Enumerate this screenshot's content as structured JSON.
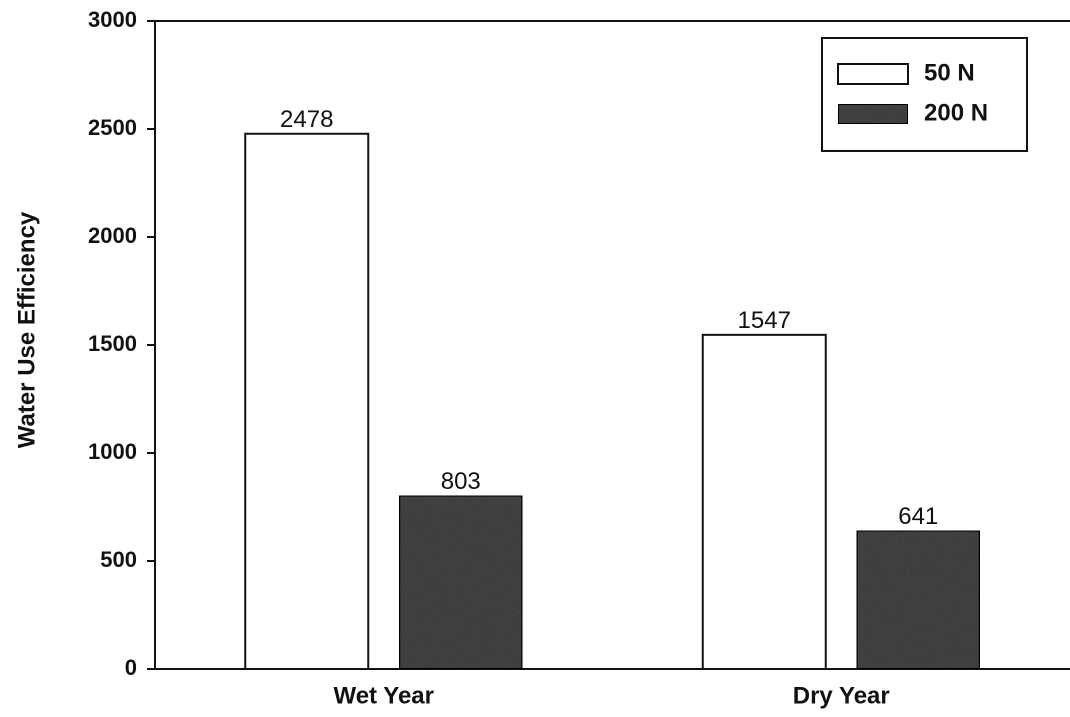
{
  "chart_data": {
    "type": "bar",
    "y_label": "Water Use Efficiency",
    "categories": [
      "Wet Year",
      "Dry Year"
    ],
    "series": [
      {
        "name": "50 N",
        "color": "#ffffff",
        "values": [
          2478,
          1547
        ]
      },
      {
        "name": "200 N",
        "color": "#4d4d4d",
        "values": [
          803,
          641
        ]
      }
    ],
    "ylim": [
      0,
      3000
    ],
    "yticks": [
      0,
      500,
      1000,
      1500,
      2000,
      2500,
      3000
    ],
    "legend": "upper right"
  }
}
